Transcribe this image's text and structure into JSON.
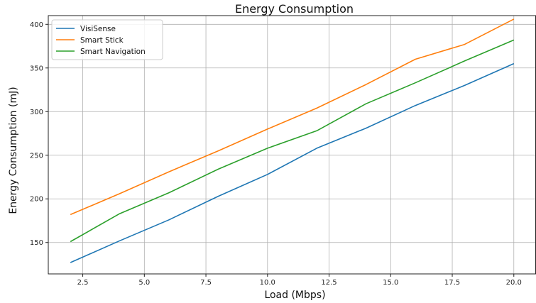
{
  "chart_data": {
    "type": "line",
    "title": "Energy Consumption",
    "xlabel": "Load (Mbps)",
    "ylabel": "Energy Consumption (mJ)",
    "x": [
      2,
      4,
      6,
      8,
      10,
      12,
      14,
      16,
      18,
      20
    ],
    "xlim": [
      1.1,
      20.9
    ],
    "ylim": [
      114,
      410
    ],
    "xticks": [
      2.5,
      5.0,
      7.5,
      10.0,
      12.5,
      15.0,
      17.5,
      20.0
    ],
    "xtick_labels": [
      "2.5",
      "5.0",
      "7.5",
      "10.0",
      "12.5",
      "15.0",
      "17.5",
      "20.0"
    ],
    "yticks": [
      150,
      200,
      250,
      300,
      350,
      400
    ],
    "ytick_labels": [
      "150",
      "200",
      "250",
      "300",
      "350",
      "400"
    ],
    "grid": true,
    "legend_position": "top-left",
    "series": [
      {
        "name": "VisiSense",
        "color": "#1f77b4",
        "values": [
          127,
          152,
          176,
          203,
          228,
          258,
          281,
          307,
          330,
          355
        ]
      },
      {
        "name": "Smart Stick",
        "color": "#ff7f0e",
        "values": [
          182,
          206,
          231,
          255,
          280,
          304,
          331,
          360,
          377,
          406
        ]
      },
      {
        "name": "Smart Navigation",
        "color": "#2ca02c",
        "values": [
          151,
          183,
          207,
          234,
          258,
          278,
          309,
          333,
          358,
          382
        ]
      }
    ]
  }
}
